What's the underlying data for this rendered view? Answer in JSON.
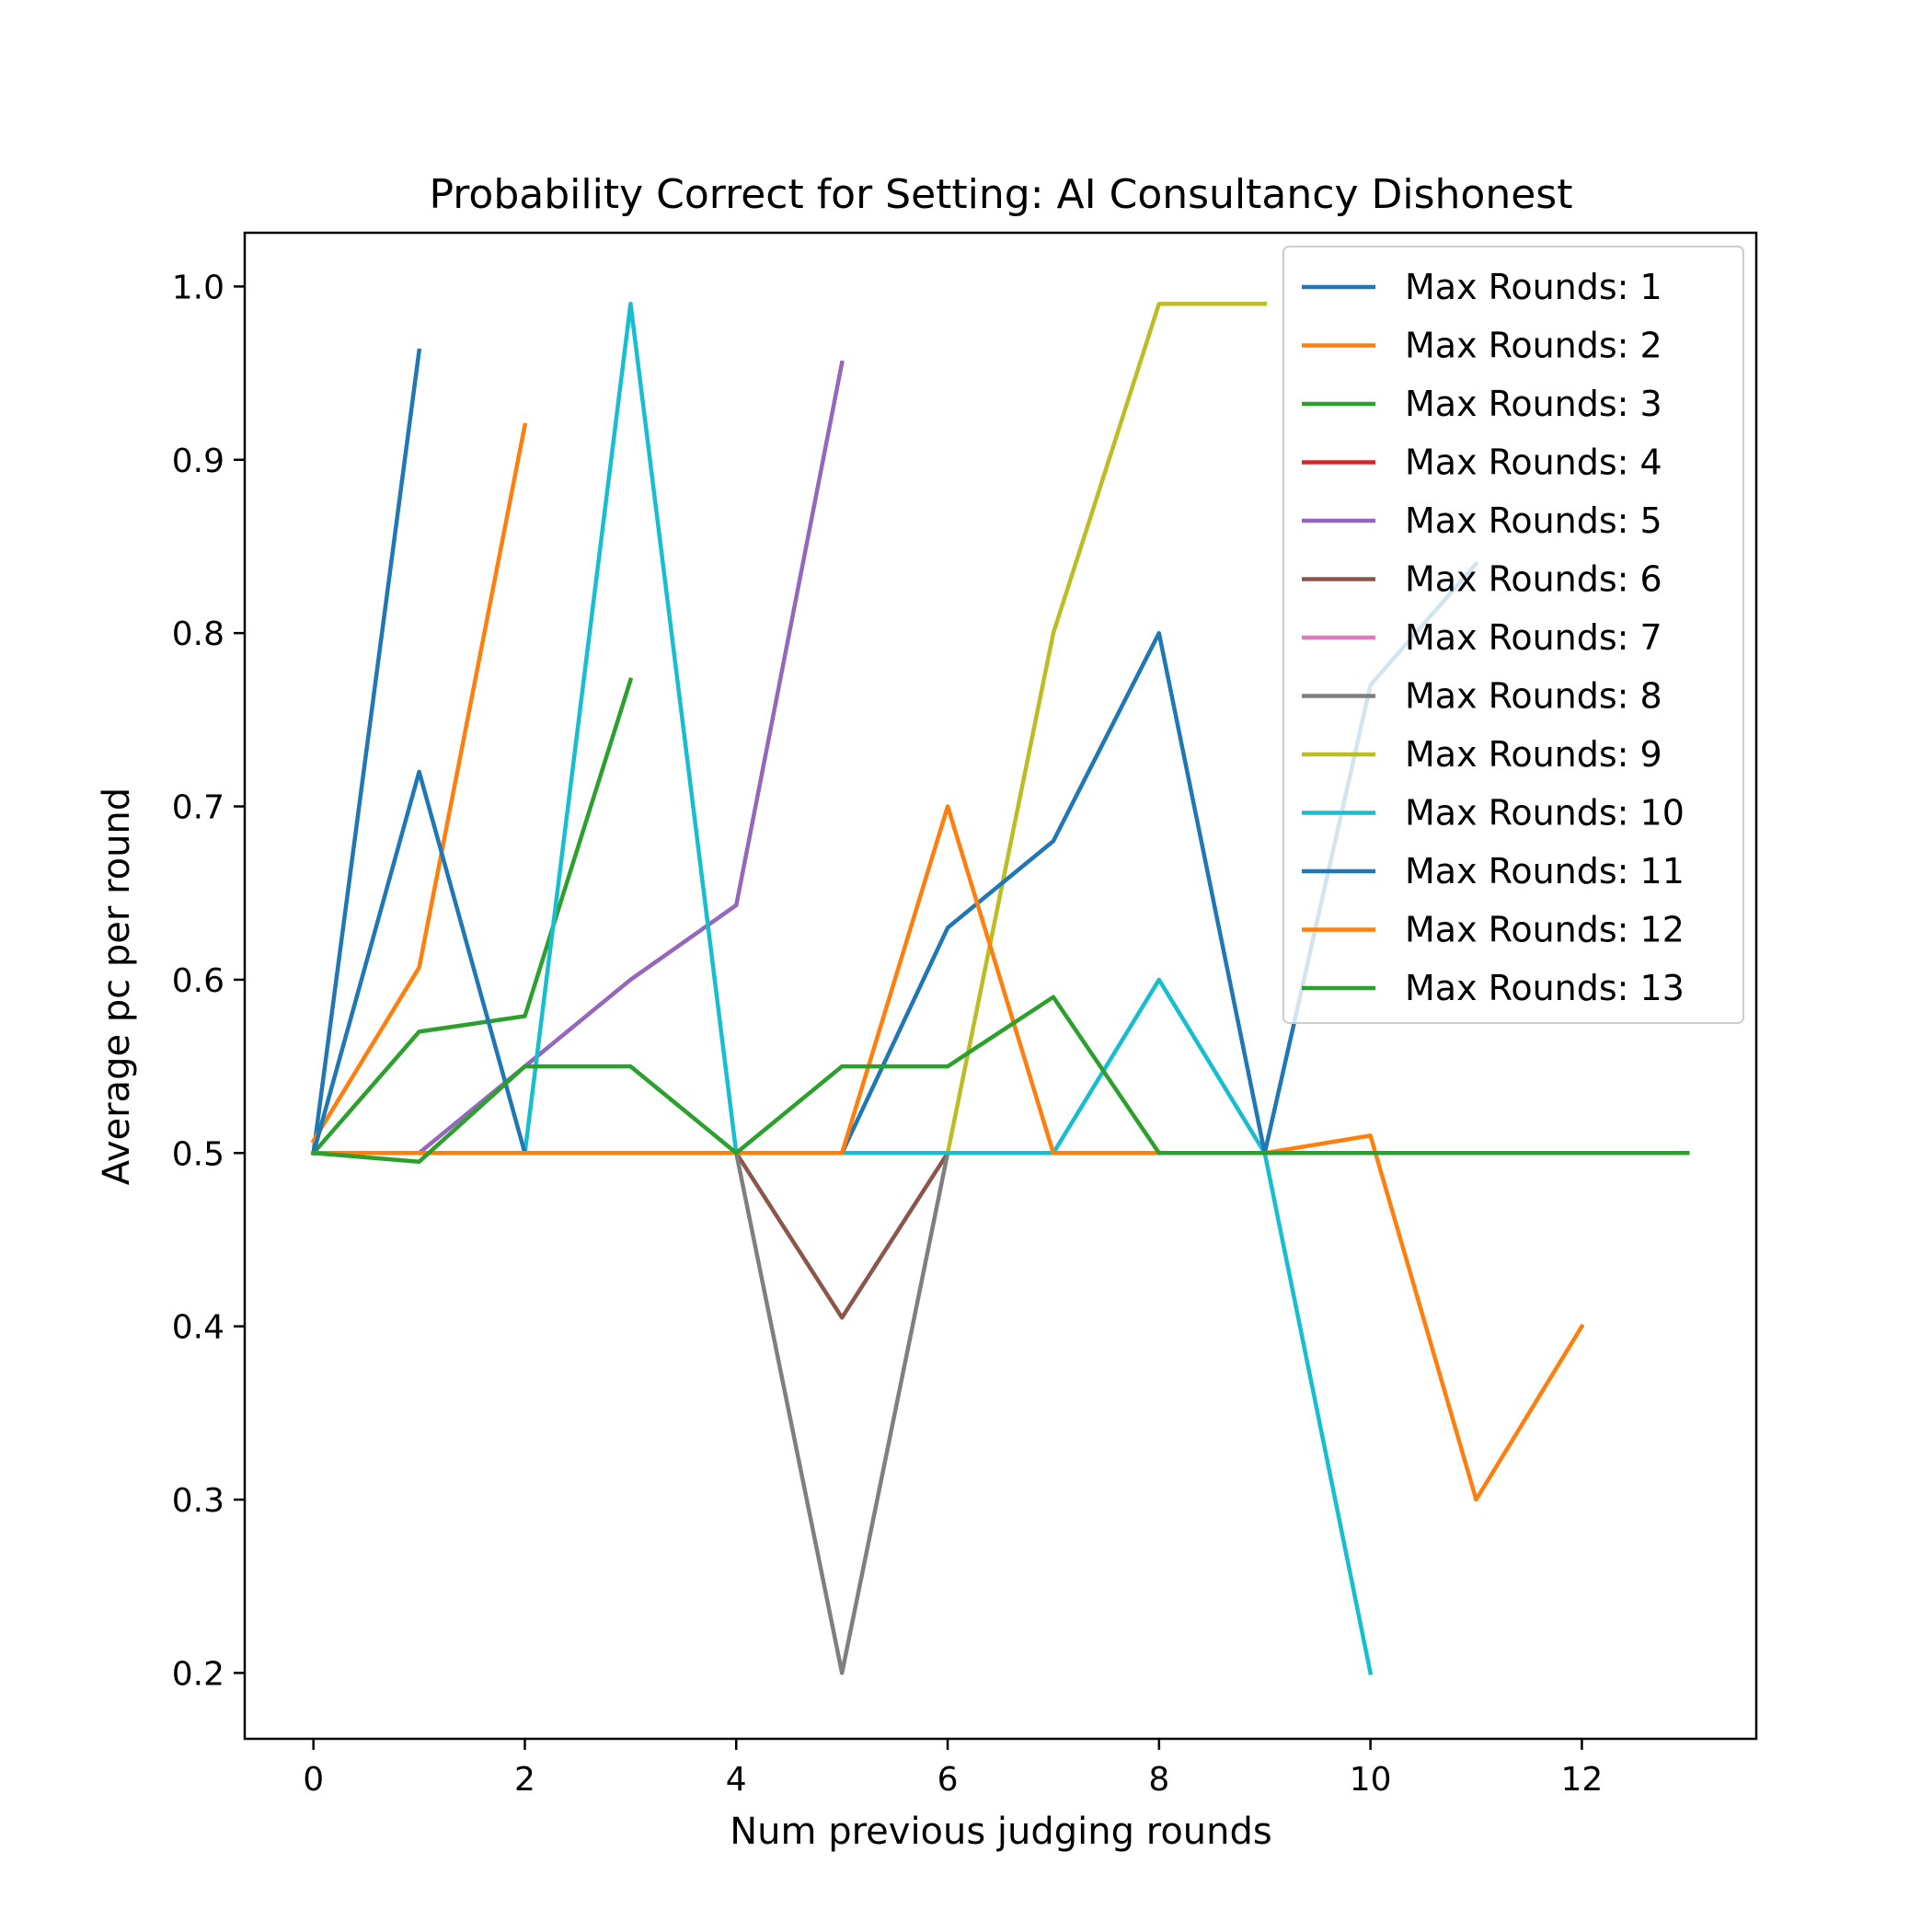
{
  "chart_data": {
    "type": "line",
    "title": "Probability Correct for Setting: AI Consultancy Dishonest",
    "xlabel": "Num previous judging rounds",
    "ylabel": "Average pc per round",
    "xlim": [
      -0.65,
      13.65
    ],
    "ylim": [
      0.162,
      1.031
    ],
    "xticks": [
      0,
      2,
      4,
      6,
      8,
      10,
      12
    ],
    "yticks": [
      0.2,
      0.3,
      0.4,
      0.5,
      0.6,
      0.7,
      0.8,
      0.9,
      1.0
    ],
    "xtick_labels": [
      "0",
      "2",
      "4",
      "6",
      "8",
      "10",
      "12"
    ],
    "ytick_labels": [
      "0.2",
      "0.3",
      "0.4",
      "0.5",
      "0.6",
      "0.7",
      "0.8",
      "0.9",
      "1.0"
    ],
    "grid": false,
    "legend_position": "upper-right",
    "series": [
      {
        "name": "Max Rounds: 1",
        "color": "#1f77b4",
        "x": [
          0,
          1
        ],
        "y": [
          0.5,
          0.963
        ]
      },
      {
        "name": "Max Rounds: 2",
        "color": "#ff7f0e",
        "x": [
          0,
          1,
          2
        ],
        "y": [
          0.507,
          0.607,
          0.92
        ]
      },
      {
        "name": "Max Rounds: 3",
        "color": "#2ca02c",
        "x": [
          0,
          1,
          2,
          3
        ],
        "y": [
          0.5,
          0.57,
          0.579,
          0.773
        ]
      },
      {
        "name": "Max Rounds: 4",
        "color": "#d62728",
        "x": [
          0,
          1,
          2,
          3,
          4
        ],
        "y": [
          0.5,
          0.5,
          0.5,
          0.5,
          0.5
        ]
      },
      {
        "name": "Max Rounds: 5",
        "color": "#9467bd",
        "x": [
          0,
          1,
          2,
          3,
          4,
          5
        ],
        "y": [
          0.5,
          0.5,
          0.55,
          0.6,
          0.643,
          0.956
        ]
      },
      {
        "name": "Max Rounds: 6",
        "color": "#8c564b",
        "x": [
          0,
          1,
          2,
          3,
          4,
          5,
          6
        ],
        "y": [
          0.5,
          0.5,
          0.5,
          0.5,
          0.5,
          0.405,
          0.5
        ]
      },
      {
        "name": "Max Rounds: 7",
        "color": "#e377c2",
        "x": [
          0,
          1,
          2,
          3,
          4,
          5,
          6,
          7
        ],
        "y": [
          0.5,
          0.5,
          0.5,
          0.5,
          0.5,
          0.5,
          0.5,
          0.5
        ]
      },
      {
        "name": "Max Rounds: 8",
        "color": "#7f7f7f",
        "x": [
          0,
          1,
          2,
          3,
          4,
          5,
          6,
          7,
          8
        ],
        "y": [
          0.5,
          0.5,
          0.5,
          0.5,
          0.5,
          0.2,
          0.5,
          0.5,
          0.5
        ]
      },
      {
        "name": "Max Rounds: 9",
        "color": "#bcbd22",
        "x": [
          0,
          1,
          2,
          3,
          4,
          5,
          6,
          7,
          8,
          9
        ],
        "y": [
          0.5,
          0.5,
          0.5,
          0.5,
          0.5,
          0.5,
          0.5,
          0.8,
          0.99,
          0.99
        ]
      },
      {
        "name": "Max Rounds: 10",
        "color": "#17becf",
        "x": [
          0,
          1,
          2,
          3,
          4,
          5,
          6,
          7,
          8,
          9,
          10
        ],
        "y": [
          0.5,
          0.5,
          0.5,
          0.99,
          0.5,
          0.5,
          0.5,
          0.5,
          0.6,
          0.5,
          0.2
        ]
      },
      {
        "name": "Max Rounds: 11",
        "color": "#1f77b4",
        "x": [
          0,
          1,
          2,
          3,
          4,
          5,
          6,
          7,
          8,
          9,
          10,
          11
        ],
        "y": [
          0.5,
          0.72,
          0.5,
          0.5,
          0.5,
          0.5,
          0.63,
          0.68,
          0.8,
          0.5,
          0.77,
          0.84
        ]
      },
      {
        "name": "Max Rounds: 12",
        "color": "#ff7f0e",
        "x": [
          0,
          1,
          2,
          3,
          4,
          5,
          6,
          7,
          8,
          9,
          10,
          11,
          12
        ],
        "y": [
          0.5,
          0.5,
          0.5,
          0.5,
          0.5,
          0.5,
          0.7,
          0.5,
          0.5,
          0.5,
          0.51,
          0.3,
          0.4
        ]
      },
      {
        "name": "Max Rounds: 13",
        "color": "#2ca02c",
        "x": [
          0,
          1,
          2,
          3,
          4,
          5,
          6,
          7,
          8,
          9,
          10,
          11,
          12,
          13
        ],
        "y": [
          0.5,
          0.495,
          0.55,
          0.55,
          0.5,
          0.55,
          0.55,
          0.59,
          0.5,
          0.5,
          0.5,
          0.5,
          0.5,
          0.5
        ]
      }
    ]
  }
}
